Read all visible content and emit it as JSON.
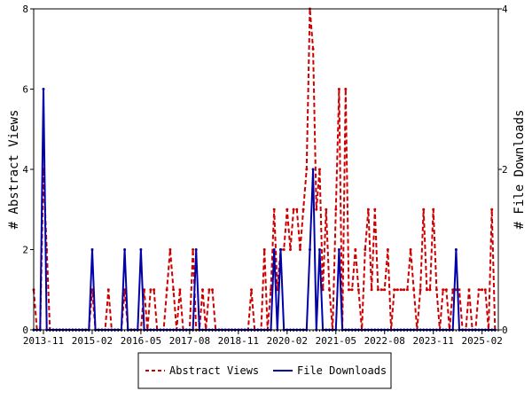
{
  "chart_data": {
    "type": "line",
    "ylabel_left": "# Abstract Views",
    "ylabel_right": "# File Downloads",
    "x_tick_labels": [
      "2013-11",
      "2015-02",
      "2016-05",
      "2017-08",
      "2018-11",
      "2020-02",
      "2021-05",
      "2022-08",
      "2023-11",
      "2025-02"
    ],
    "ylim_left": [
      0,
      8
    ],
    "yticks_left": [
      0,
      2,
      4,
      6,
      8
    ],
    "ylim_right": [
      0,
      4
    ],
    "yticks_right": [
      0,
      2,
      4
    ],
    "xlim": [
      "2013-08",
      "2025-07"
    ],
    "grid": false,
    "legend_position": "bottom",
    "series": [
      {
        "name": "Abstract Views",
        "axis": "left",
        "color": "#cc0000",
        "style": "dashed",
        "points": [
          [
            "2013-08",
            1
          ],
          [
            "2013-09",
            0
          ],
          [
            "2013-10",
            0
          ],
          [
            "2013-11",
            4
          ],
          [
            "2013-12",
            2
          ],
          [
            "2014-01",
            0
          ],
          [
            "2014-02",
            0
          ],
          [
            "2014-03",
            0
          ],
          [
            "2014-04",
            0
          ],
          [
            "2014-05",
            0
          ],
          [
            "2014-06",
            0
          ],
          [
            "2014-07",
            0
          ],
          [
            "2014-08",
            0
          ],
          [
            "2014-09",
            0
          ],
          [
            "2014-10",
            0
          ],
          [
            "2014-11",
            0
          ],
          [
            "2014-12",
            0
          ],
          [
            "2015-01",
            0
          ],
          [
            "2015-02",
            1
          ],
          [
            "2015-03",
            0
          ],
          [
            "2015-04",
            0
          ],
          [
            "2015-05",
            0
          ],
          [
            "2015-06",
            0
          ],
          [
            "2015-07",
            1
          ],
          [
            "2015-08",
            0
          ],
          [
            "2015-09",
            0
          ],
          [
            "2015-10",
            0
          ],
          [
            "2015-11",
            0
          ],
          [
            "2015-12",
            1
          ],
          [
            "2016-01",
            0
          ],
          [
            "2016-02",
            0
          ],
          [
            "2016-03",
            0
          ],
          [
            "2016-04",
            0
          ],
          [
            "2016-05",
            0
          ],
          [
            "2016-06",
            1
          ],
          [
            "2016-07",
            0
          ],
          [
            "2016-08",
            1
          ],
          [
            "2016-09",
            1
          ],
          [
            "2016-10",
            0
          ],
          [
            "2016-11",
            0
          ],
          [
            "2016-12",
            0
          ],
          [
            "2017-01",
            1
          ],
          [
            "2017-02",
            2
          ],
          [
            "2017-03",
            1
          ],
          [
            "2017-04",
            0
          ],
          [
            "2017-05",
            1
          ],
          [
            "2017-06",
            0
          ],
          [
            "2017-07",
            0
          ],
          [
            "2017-08",
            0
          ],
          [
            "2017-09",
            2
          ],
          [
            "2017-10",
            0
          ],
          [
            "2017-11",
            0
          ],
          [
            "2017-12",
            1
          ],
          [
            "2018-01",
            0
          ],
          [
            "2018-02",
            1
          ],
          [
            "2018-03",
            1
          ],
          [
            "2018-04",
            0
          ],
          [
            "2018-05",
            0
          ],
          [
            "2018-06",
            0
          ],
          [
            "2018-07",
            0
          ],
          [
            "2018-08",
            0
          ],
          [
            "2018-09",
            0
          ],
          [
            "2018-10",
            0
          ],
          [
            "2018-11",
            0
          ],
          [
            "2018-12",
            0
          ],
          [
            "2019-01",
            0
          ],
          [
            "2019-02",
            0
          ],
          [
            "2019-03",
            1
          ],
          [
            "2019-04",
            0
          ],
          [
            "2019-05",
            0
          ],
          [
            "2019-06",
            0
          ],
          [
            "2019-07",
            2
          ],
          [
            "2019-08",
            0
          ],
          [
            "2019-09",
            1
          ],
          [
            "2019-10",
            3
          ],
          [
            "2019-11",
            1
          ],
          [
            "2019-12",
            2
          ],
          [
            "2020-01",
            2
          ],
          [
            "2020-02",
            3
          ],
          [
            "2020-03",
            2
          ],
          [
            "2020-04",
            3
          ],
          [
            "2020-05",
            3
          ],
          [
            "2020-06",
            2
          ],
          [
            "2020-07",
            3
          ],
          [
            "2020-08",
            4
          ],
          [
            "2020-09",
            8
          ],
          [
            "2020-10",
            7
          ],
          [
            "2020-11",
            3
          ],
          [
            "2020-12",
            4
          ],
          [
            "2021-01",
            1
          ],
          [
            "2021-02",
            3
          ],
          [
            "2021-03",
            1
          ],
          [
            "2021-04",
            0
          ],
          [
            "2021-05",
            3
          ],
          [
            "2021-06",
            6
          ],
          [
            "2021-07",
            0
          ],
          [
            "2021-08",
            6
          ],
          [
            "2021-09",
            1
          ],
          [
            "2021-10",
            1
          ],
          [
            "2021-11",
            2
          ],
          [
            "2021-12",
            1
          ],
          [
            "2022-01",
            0
          ],
          [
            "2022-02",
            2
          ],
          [
            "2022-03",
            3
          ],
          [
            "2022-04",
            1
          ],
          [
            "2022-05",
            3
          ],
          [
            "2022-06",
            1
          ],
          [
            "2022-07",
            1
          ],
          [
            "2022-08",
            1
          ],
          [
            "2022-09",
            2
          ],
          [
            "2022-10",
            0
          ],
          [
            "2022-11",
            1
          ],
          [
            "2022-12",
            1
          ],
          [
            "2023-01",
            1
          ],
          [
            "2023-02",
            1
          ],
          [
            "2023-03",
            1
          ],
          [
            "2023-04",
            2
          ],
          [
            "2023-05",
            1
          ],
          [
            "2023-06",
            0
          ],
          [
            "2023-07",
            1
          ],
          [
            "2023-08",
            3
          ],
          [
            "2023-09",
            1
          ],
          [
            "2023-10",
            1
          ],
          [
            "2023-11",
            3
          ],
          [
            "2023-12",
            1
          ],
          [
            "2024-01",
            0
          ],
          [
            "2024-02",
            1
          ],
          [
            "2024-03",
            1
          ],
          [
            "2024-04",
            0
          ],
          [
            "2024-05",
            1
          ],
          [
            "2024-06",
            1
          ],
          [
            "2024-07",
            1
          ],
          [
            "2024-08",
            0
          ],
          [
            "2024-09",
            0
          ],
          [
            "2024-10",
            1
          ],
          [
            "2024-11",
            0
          ],
          [
            "2024-12",
            0
          ],
          [
            "2025-01",
            1
          ],
          [
            "2025-02",
            1
          ],
          [
            "2025-03",
            1
          ],
          [
            "2025-04",
            0
          ],
          [
            "2025-05",
            3
          ],
          [
            "2025-06",
            0
          ]
        ]
      },
      {
        "name": "File Downloads",
        "axis": "right",
        "color": "#0000aa",
        "style": "solid",
        "points": [
          [
            "2013-08",
            0
          ],
          [
            "2013-09",
            0
          ],
          [
            "2013-10",
            0
          ],
          [
            "2013-11",
            3
          ],
          [
            "2013-12",
            0
          ],
          [
            "2014-01",
            0
          ],
          [
            "2014-02",
            0
          ],
          [
            "2014-03",
            0
          ],
          [
            "2014-04",
            0
          ],
          [
            "2014-05",
            0
          ],
          [
            "2014-06",
            0
          ],
          [
            "2014-07",
            0
          ],
          [
            "2014-08",
            0
          ],
          [
            "2014-09",
            0
          ],
          [
            "2014-10",
            0
          ],
          [
            "2014-11",
            0
          ],
          [
            "2014-12",
            0
          ],
          [
            "2015-01",
            0
          ],
          [
            "2015-02",
            1
          ],
          [
            "2015-03",
            0
          ],
          [
            "2015-04",
            0
          ],
          [
            "2015-05",
            0
          ],
          [
            "2015-06",
            0
          ],
          [
            "2015-07",
            0
          ],
          [
            "2015-08",
            0
          ],
          [
            "2015-09",
            0
          ],
          [
            "2015-10",
            0
          ],
          [
            "2015-11",
            0
          ],
          [
            "2015-12",
            1
          ],
          [
            "2016-01",
            0
          ],
          [
            "2016-02",
            0
          ],
          [
            "2016-03",
            0
          ],
          [
            "2016-04",
            0
          ],
          [
            "2016-05",
            1
          ],
          [
            "2016-06",
            0
          ],
          [
            "2016-07",
            0
          ],
          [
            "2016-08",
            0
          ],
          [
            "2016-09",
            0
          ],
          [
            "2016-10",
            0
          ],
          [
            "2016-11",
            0
          ],
          [
            "2016-12",
            0
          ],
          [
            "2017-01",
            0
          ],
          [
            "2017-02",
            0
          ],
          [
            "2017-03",
            0
          ],
          [
            "2017-04",
            0
          ],
          [
            "2017-05",
            0
          ],
          [
            "2017-06",
            0
          ],
          [
            "2017-07",
            0
          ],
          [
            "2017-08",
            0
          ],
          [
            "2017-09",
            0
          ],
          [
            "2017-10",
            1
          ],
          [
            "2017-11",
            0
          ],
          [
            "2017-12",
            0
          ],
          [
            "2018-01",
            0
          ],
          [
            "2018-02",
            0
          ],
          [
            "2018-03",
            0
          ],
          [
            "2018-04",
            0
          ],
          [
            "2018-05",
            0
          ],
          [
            "2018-06",
            0
          ],
          [
            "2018-07",
            0
          ],
          [
            "2018-08",
            0
          ],
          [
            "2018-09",
            0
          ],
          [
            "2018-10",
            0
          ],
          [
            "2018-11",
            0
          ],
          [
            "2018-12",
            0
          ],
          [
            "2019-01",
            0
          ],
          [
            "2019-02",
            0
          ],
          [
            "2019-03",
            0
          ],
          [
            "2019-04",
            0
          ],
          [
            "2019-05",
            0
          ],
          [
            "2019-06",
            0
          ],
          [
            "2019-07",
            0
          ],
          [
            "2019-08",
            0
          ],
          [
            "2019-09",
            0
          ],
          [
            "2019-10",
            1
          ],
          [
            "2019-11",
            0
          ],
          [
            "2019-12",
            1
          ],
          [
            "2020-01",
            0
          ],
          [
            "2020-02",
            0
          ],
          [
            "2020-03",
            0
          ],
          [
            "2020-04",
            0
          ],
          [
            "2020-05",
            0
          ],
          [
            "2020-06",
            0
          ],
          [
            "2020-07",
            0
          ],
          [
            "2020-08",
            0
          ],
          [
            "2020-09",
            1
          ],
          [
            "2020-10",
            2
          ],
          [
            "2020-11",
            0
          ],
          [
            "2020-12",
            1
          ],
          [
            "2021-01",
            0
          ],
          [
            "2021-02",
            0
          ],
          [
            "2021-03",
            0
          ],
          [
            "2021-04",
            0
          ],
          [
            "2021-05",
            0
          ],
          [
            "2021-06",
            1
          ],
          [
            "2021-07",
            0
          ],
          [
            "2021-08",
            0
          ],
          [
            "2021-09",
            0
          ],
          [
            "2021-10",
            0
          ],
          [
            "2021-11",
            0
          ],
          [
            "2021-12",
            0
          ],
          [
            "2022-01",
            0
          ],
          [
            "2022-02",
            0
          ],
          [
            "2022-03",
            0
          ],
          [
            "2022-04",
            0
          ],
          [
            "2022-05",
            0
          ],
          [
            "2022-06",
            0
          ],
          [
            "2022-07",
            0
          ],
          [
            "2022-08",
            0
          ],
          [
            "2022-09",
            0
          ],
          [
            "2022-10",
            0
          ],
          [
            "2022-11",
            0
          ],
          [
            "2022-12",
            0
          ],
          [
            "2023-01",
            0
          ],
          [
            "2023-02",
            0
          ],
          [
            "2023-03",
            0
          ],
          [
            "2023-04",
            0
          ],
          [
            "2023-05",
            0
          ],
          [
            "2023-06",
            0
          ],
          [
            "2023-07",
            0
          ],
          [
            "2023-08",
            0
          ],
          [
            "2023-09",
            0
          ],
          [
            "2023-10",
            0
          ],
          [
            "2023-11",
            0
          ],
          [
            "2023-12",
            0
          ],
          [
            "2024-01",
            0
          ],
          [
            "2024-02",
            0
          ],
          [
            "2024-03",
            0
          ],
          [
            "2024-04",
            0
          ],
          [
            "2024-05",
            0
          ],
          [
            "2024-06",
            1
          ],
          [
            "2024-07",
            0
          ],
          [
            "2024-08",
            0
          ],
          [
            "2024-09",
            0
          ],
          [
            "2024-10",
            0
          ],
          [
            "2024-11",
            0
          ],
          [
            "2024-12",
            0
          ],
          [
            "2025-01",
            0
          ],
          [
            "2025-02",
            0
          ],
          [
            "2025-03",
            0
          ],
          [
            "2025-04",
            0
          ],
          [
            "2025-05",
            0
          ],
          [
            "2025-06",
            0
          ]
        ]
      }
    ]
  }
}
